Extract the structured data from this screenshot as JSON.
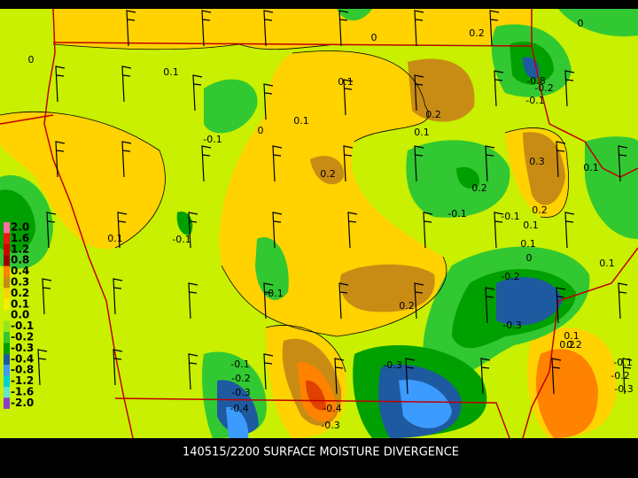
{
  "caption": "140515/2200 SURFACE MOISTURE DIVERGENCE",
  "legend": [
    {
      "label": "2.0",
      "color": "#ff6ea0"
    },
    {
      "label": "1.6",
      "color": "#f01414"
    },
    {
      "label": "1.2",
      "color": "#d20000"
    },
    {
      "label": "0.8",
      "color": "#a00000"
    },
    {
      "label": "0.4",
      "color": "#ff8200"
    },
    {
      "label": "0.3",
      "color": "#c88c14"
    },
    {
      "label": "0.2",
      "color": "#ffd200"
    },
    {
      "label": "0.1",
      "color": "#f0f000"
    },
    {
      "label": "0.0",
      "color": "#c8f000"
    },
    {
      "label": "-0.1",
      "color": "#96e61e"
    },
    {
      "label": "-0.2",
      "color": "#32c832"
    },
    {
      "label": "-0.3",
      "color": "#00a000"
    },
    {
      "label": "-0.4",
      "color": "#1e5aa0"
    },
    {
      "label": "-0.8",
      "color": "#3c9bff"
    },
    {
      "label": "-1.2",
      "color": "#00d2d2"
    },
    {
      "label": "-1.6",
      "color": "#64e6c8"
    },
    {
      "label": "-2.0",
      "color": "#8c3cc8"
    }
  ],
  "contour_labels": [
    "0",
    "0.2",
    "0",
    "0",
    "0.1",
    "0.1",
    "0.2",
    "-0.8",
    "-0.2",
    "-0.1",
    "-0.1",
    "0",
    "0.1",
    "0.1",
    "0.2",
    "0.3",
    "0.1",
    "0.2",
    "-0.1",
    "0.2",
    "-0.1",
    "0.1",
    "-0.1",
    "0.1",
    "0.2",
    "0.1",
    "0",
    "-0.1",
    "-0.2",
    "-0.3",
    "0.1",
    "-0.1",
    "-0.2",
    "-0.3",
    "-0.4",
    "0.2",
    "-0.4",
    "-0.3",
    "-0.3",
    "0.1",
    "0.2",
    "-0.1",
    "-0.2",
    "-0.3"
  ]
}
